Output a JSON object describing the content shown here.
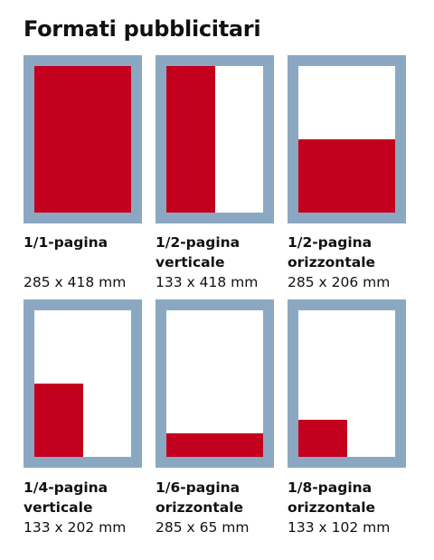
{
  "title": "Formati pubblicitari",
  "colors": {
    "frame": "#8ba8c2",
    "ad_area": "#c4001f",
    "page": "#ffffff"
  },
  "formats": [
    {
      "name_lines": [
        "1/1-pagina",
        ""
      ],
      "dimensions": "285 x 418 mm",
      "fill": {
        "width_fraction": 1.0,
        "height_fraction": 1.0
      }
    },
    {
      "name_lines": [
        "1/2-pagina",
        "verticale"
      ],
      "dimensions": "133 x 418 mm",
      "fill": {
        "width_fraction": 0.5,
        "height_fraction": 1.0
      }
    },
    {
      "name_lines": [
        "1/2-pagina",
        "orizzontale"
      ],
      "dimensions": "285 x 206 mm",
      "fill": {
        "width_fraction": 1.0,
        "height_fraction": 0.5
      }
    },
    {
      "name_lines": [
        "1/4-pagina",
        "verticale"
      ],
      "dimensions": "133 x 202 mm",
      "fill": {
        "width_fraction": 0.5,
        "height_fraction": 0.5
      }
    },
    {
      "name_lines": [
        "1/6-pagina",
        "orizzontale"
      ],
      "dimensions": "285 x 65 mm",
      "fill": {
        "width_fraction": 1.0,
        "height_fraction": 0.16
      }
    },
    {
      "name_lines": [
        "1/8-pagina",
        "orizzontale"
      ],
      "dimensions": "133 x 102 mm",
      "fill": {
        "width_fraction": 0.5,
        "height_fraction": 0.25
      }
    }
  ]
}
